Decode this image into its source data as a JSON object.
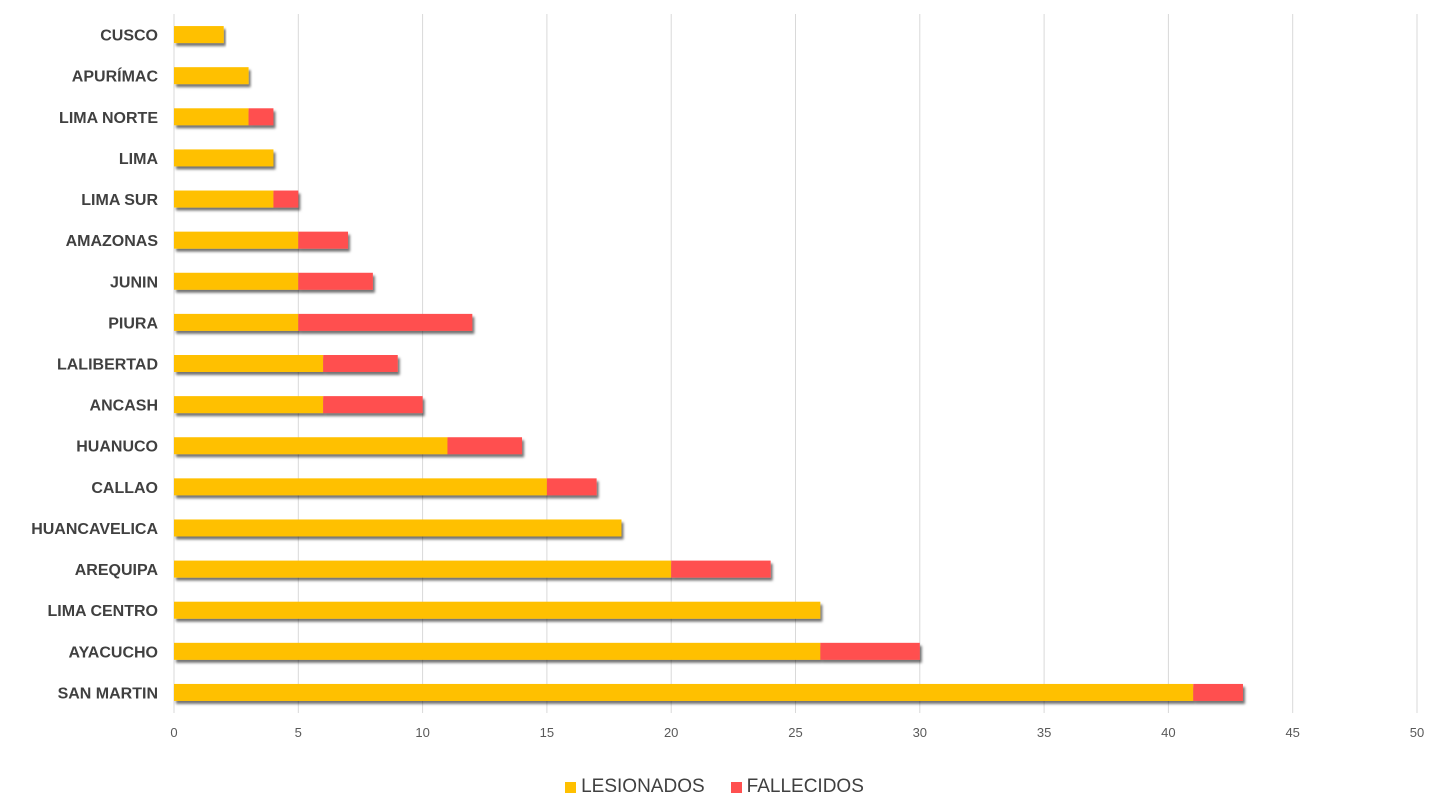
{
  "chart_data": {
    "type": "bar",
    "orientation": "horizontal",
    "stacked": true,
    "categories": [
      "CUSCO",
      "APURÍMAC",
      "LIMA NORTE",
      "LIMA",
      "LIMA SUR",
      "AMAZONAS",
      "JUNIN",
      "PIURA",
      "LALIBERTAD",
      "ANCASH",
      "HUANUCO",
      "CALLAO",
      "HUANCAVELICA",
      "AREQUIPA",
      "LIMA CENTRO",
      "AYACUCHO",
      "SAN MARTIN"
    ],
    "series": [
      {
        "name": "LESIONADOS",
        "color": "#FFC000",
        "values": [
          2,
          3,
          3,
          4,
          4,
          5,
          5,
          5,
          6,
          6,
          11,
          15,
          18,
          20,
          26,
          26,
          41
        ]
      },
      {
        "name": "FALLECIDOS",
        "color": "#FF5050",
        "values": [
          0,
          0,
          1,
          0,
          1,
          2,
          3,
          7,
          3,
          4,
          3,
          2,
          0,
          4,
          0,
          4,
          2
        ]
      }
    ],
    "xlim": [
      0,
      50
    ],
    "xticks": [
      "0",
      "5",
      "10",
      "15",
      "20",
      "25",
      "30",
      "35",
      "40",
      "45",
      "50"
    ],
    "grid": true,
    "legend": "bottom-center"
  }
}
